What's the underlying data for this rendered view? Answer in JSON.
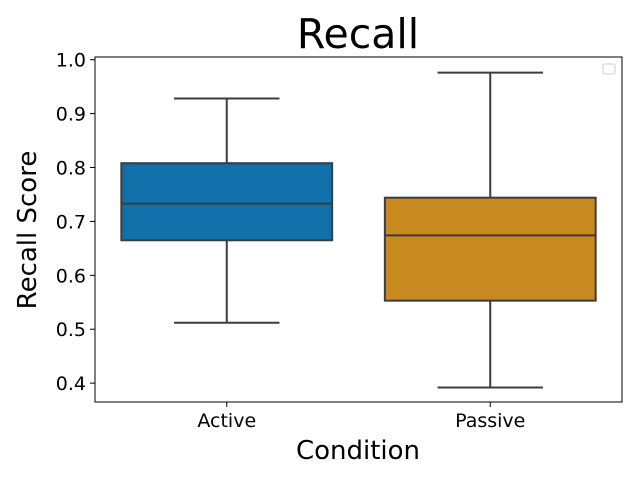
{
  "chart_data": {
    "type": "box",
    "title": "Recall",
    "xlabel": "Condition",
    "ylabel": "Recall Score",
    "categories": [
      "Active",
      "Passive"
    ],
    "ylim": [
      0.365,
      1.005
    ],
    "yticks": [
      0.4,
      0.5,
      0.6,
      0.7,
      0.8,
      0.9,
      1.0
    ],
    "ytick_labels": [
      "0.4",
      "0.5",
      "0.6",
      "0.7",
      "0.8",
      "0.9",
      "1.0"
    ],
    "boxes": [
      {
        "category": "Active",
        "whisker_low": 0.512,
        "q1": 0.665,
        "median": 0.733,
        "q3": 0.808,
        "whisker_high": 0.928,
        "color": "#1170aa"
      },
      {
        "category": "Passive",
        "whisker_low": 0.392,
        "q1": 0.553,
        "median": 0.674,
        "q3": 0.744,
        "whisker_high": 0.976,
        "color": "#c88a20"
      }
    ],
    "legend": {
      "placement": "top-right",
      "entries": []
    },
    "grid": false
  }
}
